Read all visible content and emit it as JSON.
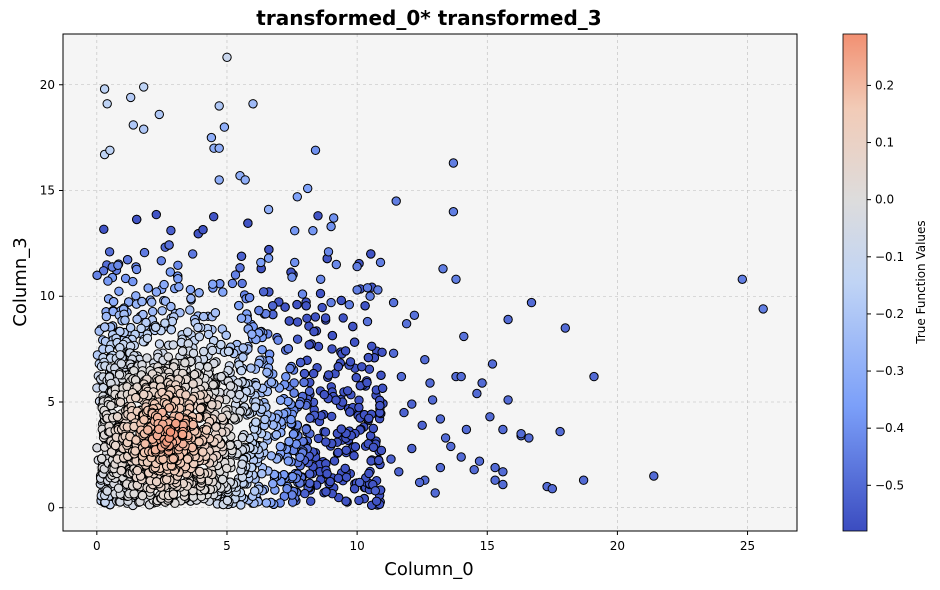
{
  "chart_data": {
    "type": "scatter",
    "title": "transformed_0* transformed_3",
    "xlabel": "Column_0",
    "ylabel": "Column_3",
    "xlim": [
      -1.3,
      26.9
    ],
    "ylim": [
      -1.1,
      22.4
    ],
    "xticks": [
      0,
      5,
      10,
      15,
      20,
      25
    ],
    "yticks": [
      0,
      5,
      10,
      15,
      20
    ],
    "grid": true,
    "colorbar": {
      "label": "True Function Values",
      "min": -0.58,
      "max": 0.29,
      "ticks": [
        -0.5,
        -0.4,
        -0.3,
        -0.2,
        -0.1,
        0.0,
        0.1,
        0.2
      ],
      "tick_labels": [
        "−0.5",
        "−0.4",
        "−0.3",
        "−0.2",
        "−0.1",
        "0.0",
        "0.1",
        "0.2"
      ],
      "colormap": "coolwarm"
    },
    "points": [
      {
        "x": 0.3,
        "y": 19.8,
        "c": -0.15
      },
      {
        "x": 0.4,
        "y": 19.1,
        "c": -0.15
      },
      {
        "x": 1.3,
        "y": 19.4,
        "c": -0.18
      },
      {
        "x": 1.8,
        "y": 19.9,
        "c": -0.15
      },
      {
        "x": 2.4,
        "y": 18.6,
        "c": -0.2
      },
      {
        "x": 5.0,
        "y": 21.3,
        "c": -0.1
      },
      {
        "x": 4.7,
        "y": 19.0,
        "c": -0.2
      },
      {
        "x": 6.0,
        "y": 19.1,
        "c": -0.25
      },
      {
        "x": 1.4,
        "y": 18.1,
        "c": -0.2
      },
      {
        "x": 1.8,
        "y": 17.9,
        "c": -0.2
      },
      {
        "x": 0.3,
        "y": 16.7,
        "c": -0.15
      },
      {
        "x": 0.5,
        "y": 16.9,
        "c": -0.15
      },
      {
        "x": 4.4,
        "y": 17.5,
        "c": -0.3
      },
      {
        "x": 4.9,
        "y": 18.0,
        "c": -0.3
      },
      {
        "x": 4.5,
        "y": 17.0,
        "c": -0.3
      },
      {
        "x": 4.7,
        "y": 17.0,
        "c": -0.3
      },
      {
        "x": 8.4,
        "y": 16.9,
        "c": -0.4
      },
      {
        "x": 13.7,
        "y": 16.3,
        "c": -0.45
      },
      {
        "x": 11.5,
        "y": 14.5,
        "c": -0.45
      },
      {
        "x": 13.7,
        "y": 14.0,
        "c": -0.45
      },
      {
        "x": 8.1,
        "y": 15.1,
        "c": -0.35
      },
      {
        "x": 7.7,
        "y": 14.7,
        "c": -0.35
      },
      {
        "x": 5.5,
        "y": 15.7,
        "c": -0.3
      },
      {
        "x": 5.7,
        "y": 15.5,
        "c": -0.3
      },
      {
        "x": 4.7,
        "y": 15.5,
        "c": -0.3
      },
      {
        "x": 6.6,
        "y": 14.1,
        "c": -0.3
      },
      {
        "x": 9.1,
        "y": 13.7,
        "c": -0.4
      },
      {
        "x": 9.0,
        "y": 13.3,
        "c": -0.4
      },
      {
        "x": 8.3,
        "y": 13.1,
        "c": -0.38
      },
      {
        "x": 7.6,
        "y": 13.1,
        "c": -0.38
      },
      {
        "x": 13.3,
        "y": 11.3,
        "c": -0.45
      },
      {
        "x": 13.8,
        "y": 10.8,
        "c": -0.45
      },
      {
        "x": 10.9,
        "y": 11.6,
        "c": -0.45
      },
      {
        "x": 10.0,
        "y": 11.4,
        "c": -0.45
      },
      {
        "x": 10.8,
        "y": 10.3,
        "c": -0.45
      },
      {
        "x": 10.4,
        "y": 10.4,
        "c": -0.45
      },
      {
        "x": 16.7,
        "y": 9.7,
        "c": -0.5
      },
      {
        "x": 15.8,
        "y": 8.9,
        "c": -0.5
      },
      {
        "x": 18.0,
        "y": 8.5,
        "c": -0.5
      },
      {
        "x": 12.2,
        "y": 9.1,
        "c": -0.48
      },
      {
        "x": 14.1,
        "y": 8.1,
        "c": -0.48
      },
      {
        "x": 24.8,
        "y": 10.8,
        "c": -0.45
      },
      {
        "x": 25.6,
        "y": 9.4,
        "c": -0.45
      },
      {
        "x": 19.1,
        "y": 6.2,
        "c": -0.5
      },
      {
        "x": 15.2,
        "y": 6.8,
        "c": -0.5
      },
      {
        "x": 14.8,
        "y": 5.9,
        "c": -0.5
      },
      {
        "x": 15.8,
        "y": 5.1,
        "c": -0.5
      },
      {
        "x": 14.6,
        "y": 5.4,
        "c": -0.5
      },
      {
        "x": 17.8,
        "y": 3.6,
        "c": -0.5
      },
      {
        "x": 16.6,
        "y": 3.3,
        "c": -0.5
      },
      {
        "x": 16.3,
        "y": 3.4,
        "c": -0.5
      },
      {
        "x": 15.6,
        "y": 3.7,
        "c": -0.5
      },
      {
        "x": 15.1,
        "y": 4.3,
        "c": -0.5
      },
      {
        "x": 17.3,
        "y": 1.0,
        "c": -0.5
      },
      {
        "x": 17.5,
        "y": 0.9,
        "c": -0.5
      },
      {
        "x": 18.7,
        "y": 1.3,
        "c": -0.5
      },
      {
        "x": 21.4,
        "y": 1.5,
        "c": -0.5
      },
      {
        "x": 15.6,
        "y": 1.1,
        "c": -0.5
      },
      {
        "x": 15.3,
        "y": 1.3,
        "c": -0.5
      },
      {
        "x": 15.3,
        "y": 1.9,
        "c": -0.5
      },
      {
        "x": 15.6,
        "y": 1.7,
        "c": -0.5
      },
      {
        "x": 14.5,
        "y": 1.8,
        "c": -0.5
      },
      {
        "x": 13.6,
        "y": 2.9,
        "c": -0.5
      },
      {
        "x": 14.2,
        "y": 3.7,
        "c": -0.5
      },
      {
        "x": 13.2,
        "y": 4.2,
        "c": -0.5
      },
      {
        "x": 13.8,
        "y": 6.2,
        "c": -0.5
      },
      {
        "x": 14.0,
        "y": 6.2,
        "c": -0.5
      },
      {
        "x": 12.6,
        "y": 7.0,
        "c": -0.5
      },
      {
        "x": 12.8,
        "y": 5.9,
        "c": -0.5
      },
      {
        "x": 11.7,
        "y": 6.2,
        "c": -0.5
      },
      {
        "x": 11.4,
        "y": 7.3,
        "c": -0.5
      },
      {
        "x": 11.9,
        "y": 8.7,
        "c": -0.48
      },
      {
        "x": 12.1,
        "y": 4.9,
        "c": -0.52
      },
      {
        "x": 11.8,
        "y": 4.5,
        "c": -0.52
      },
      {
        "x": 12.5,
        "y": 3.9,
        "c": -0.52
      },
      {
        "x": 12.6,
        "y": 1.3,
        "c": -0.5
      },
      {
        "x": 13.0,
        "y": 0.7,
        "c": -0.5
      },
      {
        "x": 12.1,
        "y": 2.8,
        "c": -0.52
      },
      {
        "x": 11.3,
        "y": 2.3,
        "c": -0.52
      },
      {
        "x": 11.6,
        "y": 1.7,
        "c": -0.52
      },
      {
        "x": 12.4,
        "y": 1.2,
        "c": -0.5
      },
      {
        "x": 10.7,
        "y": 0.8,
        "c": -0.52
      },
      {
        "x": 10.1,
        "y": 1.2,
        "c": -0.52
      },
      {
        "x": 13.2,
        "y": 1.9,
        "c": -0.5
      },
      {
        "x": 14.0,
        "y": 2.4,
        "c": -0.5
      },
      {
        "x": 14.7,
        "y": 2.2,
        "c": -0.5
      },
      {
        "x": 13.4,
        "y": 3.3,
        "c": -0.5
      },
      {
        "x": 12.9,
        "y": 5.1,
        "c": -0.5
      },
      {
        "x": 11.4,
        "y": 9.7,
        "c": -0.48
      },
      {
        "x": 10.4,
        "y": 8.8,
        "c": -0.48
      },
      {
        "x": 9.7,
        "y": 9.6,
        "c": -0.45
      },
      {
        "x": 9.0,
        "y": 9.7,
        "c": -0.45
      },
      {
        "x": 8.6,
        "y": 10.8,
        "c": -0.42
      },
      {
        "x": 7.9,
        "y": 10.1,
        "c": -0.42
      },
      {
        "x": 7.5,
        "y": 10.9,
        "c": -0.4
      },
      {
        "x": 7.6,
        "y": 11.6,
        "c": -0.4
      },
      {
        "x": 6.6,
        "y": 11.8,
        "c": -0.35
      },
      {
        "x": 6.3,
        "y": 11.6,
        "c": -0.35
      },
      {
        "x": 9.2,
        "y": 11.5,
        "c": -0.42
      },
      {
        "x": 8.9,
        "y": 12.1,
        "c": -0.42
      },
      {
        "x": 16.3,
        "y": 3.5,
        "c": -0.5
      },
      {
        "x": 10.0,
        "y": 10.3,
        "c": -0.45
      },
      {
        "x": 10.5,
        "y": 10.0,
        "c": -0.45
      }
    ]
  }
}
